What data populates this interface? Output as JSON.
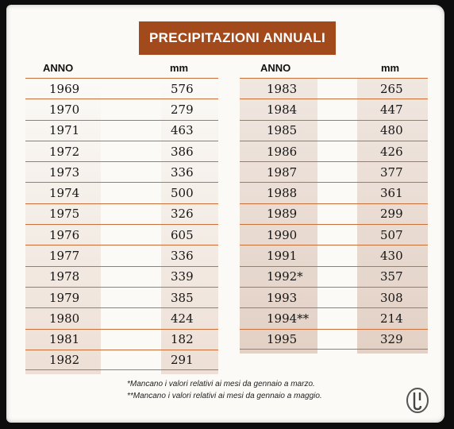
{
  "title": "PRECIPITAZIONI ANNUALI",
  "headers": {
    "year": "ANNO",
    "value": "mm"
  },
  "left_table": [
    {
      "year": "1969",
      "mm": "576"
    },
    {
      "year": "1970",
      "mm": "279"
    },
    {
      "year": "1971",
      "mm": "463"
    },
    {
      "year": "1972",
      "mm": "386"
    },
    {
      "year": "1973",
      "mm": "336"
    },
    {
      "year": "1974",
      "mm": "500"
    },
    {
      "year": "1975",
      "mm": "326"
    },
    {
      "year": "1976",
      "mm": "605"
    },
    {
      "year": "1977",
      "mm": "336"
    },
    {
      "year": "1978",
      "mm": "339"
    },
    {
      "year": "1979",
      "mm": "385"
    },
    {
      "year": "1980",
      "mm": "424"
    },
    {
      "year": "1981",
      "mm": "182"
    },
    {
      "year": "1982",
      "mm": "291"
    }
  ],
  "right_table": [
    {
      "year": "1983",
      "mm": "265"
    },
    {
      "year": "1984",
      "mm": "447"
    },
    {
      "year": "1985",
      "mm": "480"
    },
    {
      "year": "1986",
      "mm": "426"
    },
    {
      "year": "1987",
      "mm": "377"
    },
    {
      "year": "1988",
      "mm": "361"
    },
    {
      "year": "1989",
      "mm": "299"
    },
    {
      "year": "1990",
      "mm": "507"
    },
    {
      "year": "1991",
      "mm": "430"
    },
    {
      "year": "1992*",
      "mm": "357"
    },
    {
      "year": "1993",
      "mm": "308"
    },
    {
      "year": "1994**",
      "mm": "214"
    },
    {
      "year": "1995",
      "mm": "329"
    }
  ],
  "footnotes": [
    "*Mancano i valori relativi ai mesi da gennaio a marzo.",
    "**Mancano i valori relativi ai mesi da gennaio a maggio."
  ],
  "colors": {
    "title_background": "#a34a1c",
    "rule": "#c96f3a",
    "shading": "#e4cfc2"
  },
  "logo_icon": "publisher-logo-icon"
}
